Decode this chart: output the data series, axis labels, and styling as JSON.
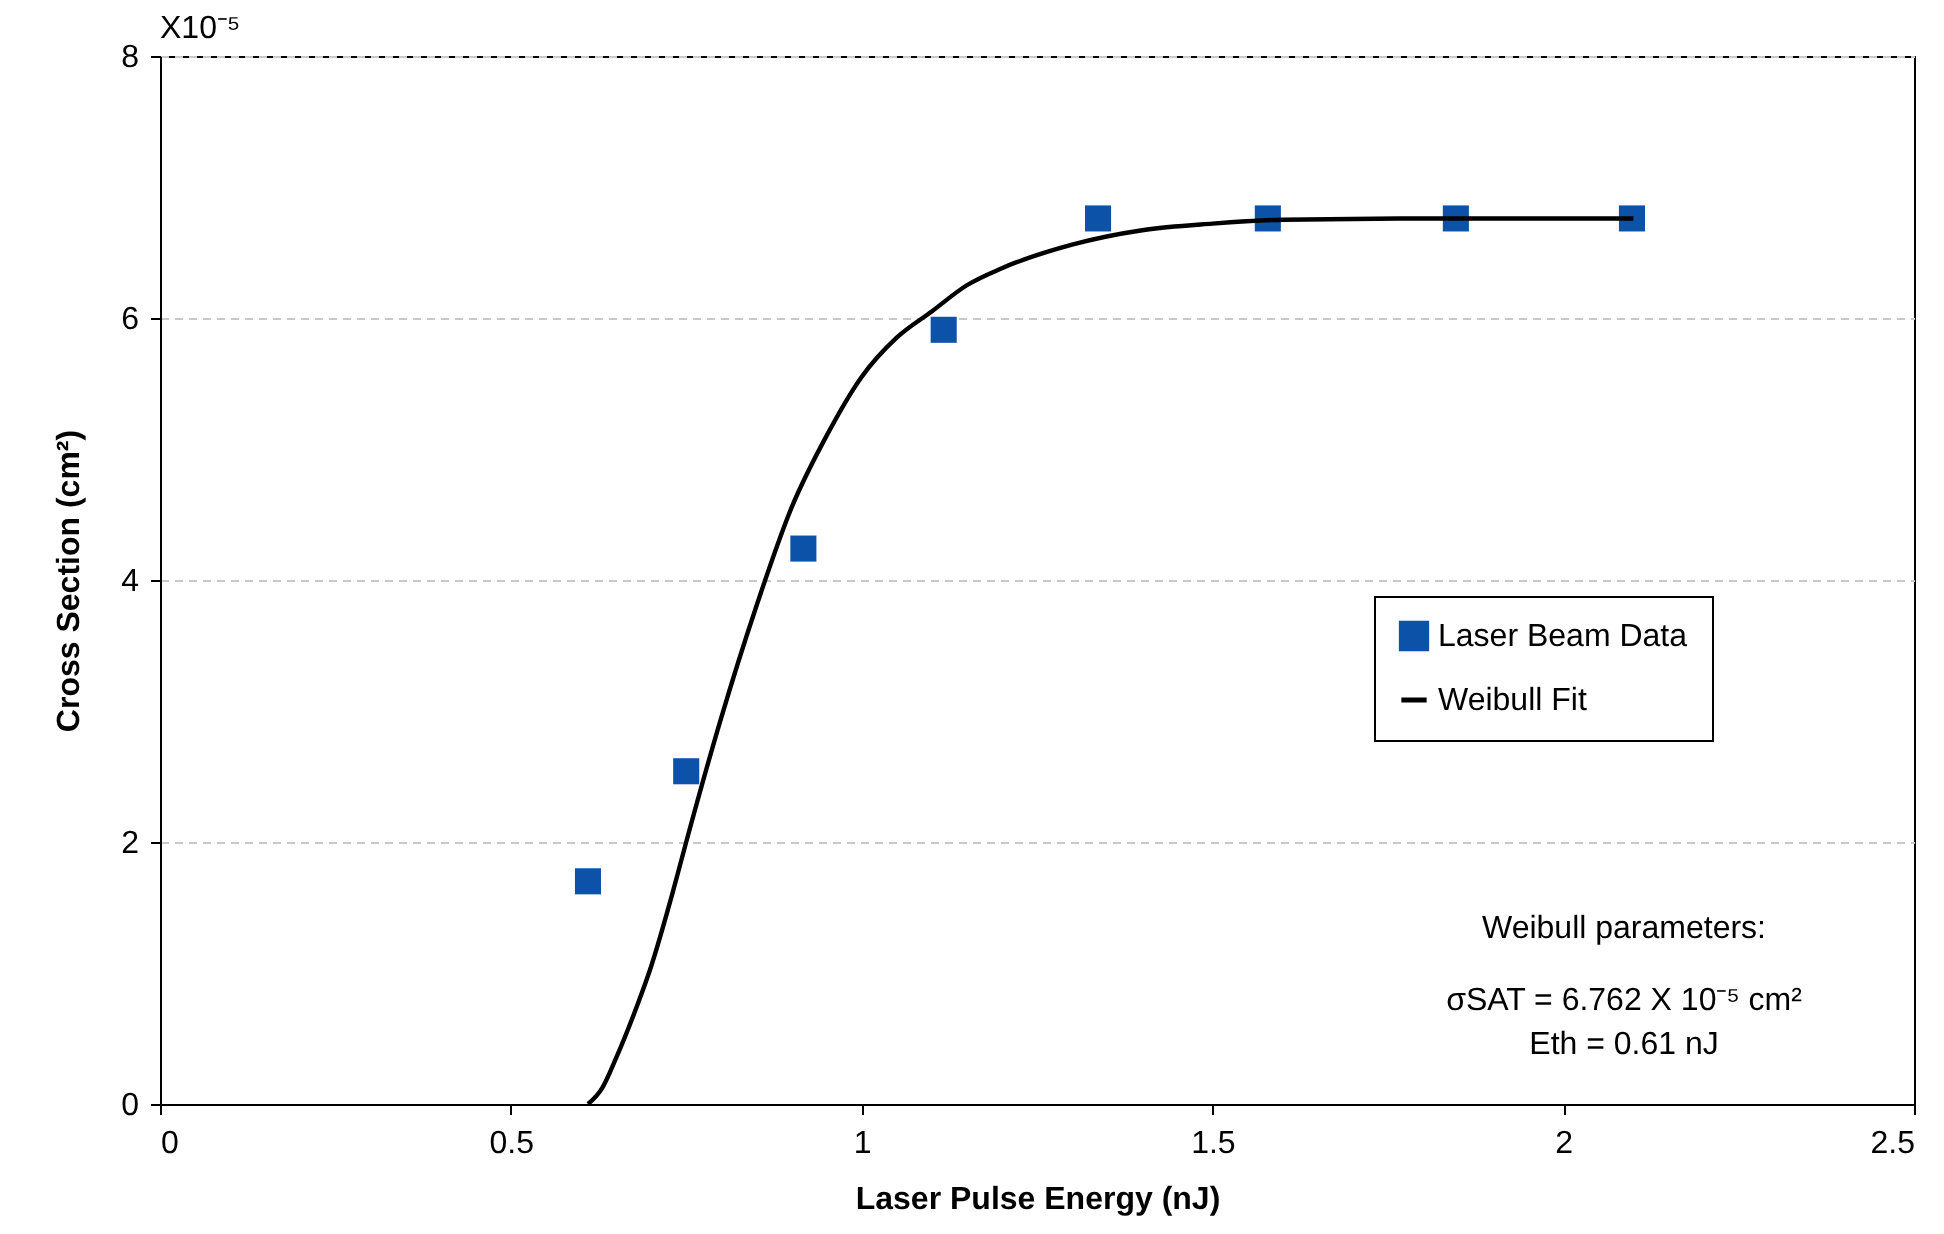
{
  "chart_data": {
    "type": "scatter",
    "xlabel": "Laser Pulse Energy (nJ)",
    "ylabel": "Cross Section (cm²)",
    "xlim": [
      0,
      2.5
    ],
    "xticks": [
      0,
      0.5,
      1,
      1.5,
      2,
      2.5
    ],
    "ylim": [
      0,
      8
    ],
    "yticks": [
      0,
      2,
      4,
      6,
      8
    ],
    "grid": "y",
    "legend": "right",
    "series": [
      {
        "name": "Laser Beam Data",
        "type": "scatter",
        "marker": "square",
        "color": "#0b52a8",
        "x": [
          0.61,
          0.75,
          0.917,
          1.117,
          1.337,
          1.579,
          1.847,
          2.098
        ],
        "values": [
          1.7,
          2.54,
          4.24,
          5.91,
          6.76,
          6.76,
          6.76,
          6.76
        ]
      },
      {
        "name": "Weibull Fit",
        "type": "line",
        "marker": "none",
        "line_style": "solid",
        "color": "#000000",
        "x": [
          0.61,
          0.63,
          0.65,
          0.68,
          0.7,
          0.73,
          0.75,
          0.8,
          0.85,
          0.9,
          0.95,
          1.0,
          1.05,
          1.1,
          1.15,
          1.2,
          1.3,
          1.4,
          1.5,
          1.6,
          1.8,
          2.1
        ],
        "values": [
          0,
          0.12,
          0.35,
          0.75,
          1.05,
          1.6,
          2.0,
          2.95,
          3.8,
          4.55,
          5.1,
          5.55,
          5.85,
          6.05,
          6.25,
          6.38,
          6.56,
          6.67,
          6.72,
          6.75,
          6.76,
          6.76
        ]
      }
    ],
    "annotations": [
      "X10⁻⁵",
      "Weibull parameters:",
      "σSAT = 6.762 X 10⁻⁵ cm²",
      "Eth = 0.61 nJ"
    ]
  }
}
